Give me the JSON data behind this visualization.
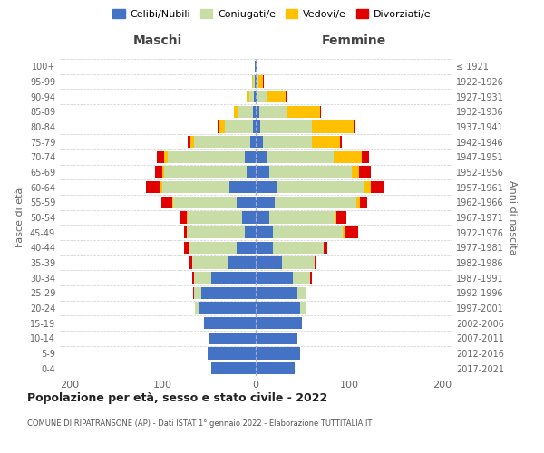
{
  "age_groups": [
    "0-4",
    "5-9",
    "10-14",
    "15-19",
    "20-24",
    "25-29",
    "30-34",
    "35-39",
    "40-44",
    "45-49",
    "50-54",
    "55-59",
    "60-64",
    "65-69",
    "70-74",
    "75-79",
    "80-84",
    "85-89",
    "90-94",
    "95-99",
    "100+"
  ],
  "birth_years": [
    "2017-2021",
    "2012-2016",
    "2007-2011",
    "2002-2006",
    "1997-2001",
    "1992-1996",
    "1987-1991",
    "1982-1986",
    "1977-1981",
    "1972-1976",
    "1967-1971",
    "1962-1966",
    "1957-1961",
    "1952-1956",
    "1947-1951",
    "1942-1946",
    "1937-1941",
    "1932-1936",
    "1927-1931",
    "1922-1926",
    "≤ 1921"
  ],
  "colors": {
    "celibi": "#4472c4",
    "coniugati": "#c8dca5",
    "vedovi": "#ffc000",
    "divorziati": "#e00000"
  },
  "maschi": {
    "celibi": [
      48,
      52,
      50,
      55,
      60,
      58,
      48,
      30,
      20,
      12,
      15,
      20,
      28,
      10,
      12,
      6,
      3,
      3,
      2,
      1,
      1
    ],
    "coniugati": [
      0,
      0,
      0,
      0,
      5,
      8,
      18,
      38,
      52,
      62,
      58,
      68,
      72,
      88,
      82,
      60,
      30,
      15,
      5,
      2,
      0
    ],
    "vedovi": [
      0,
      0,
      0,
      0,
      0,
      0,
      0,
      0,
      0,
      0,
      1,
      1,
      2,
      2,
      4,
      4,
      6,
      5,
      3,
      1,
      0
    ],
    "divorziati": [
      0,
      0,
      0,
      0,
      0,
      1,
      2,
      3,
      5,
      3,
      8,
      12,
      16,
      8,
      8,
      3,
      2,
      0,
      0,
      0,
      0
    ]
  },
  "femmine": {
    "celibi": [
      42,
      48,
      45,
      50,
      48,
      45,
      40,
      28,
      18,
      18,
      15,
      20,
      22,
      15,
      12,
      8,
      5,
      4,
      2,
      1,
      1
    ],
    "coniugati": [
      0,
      0,
      0,
      0,
      5,
      8,
      18,
      35,
      55,
      75,
      70,
      88,
      95,
      88,
      72,
      52,
      55,
      30,
      10,
      2,
      0
    ],
    "vedovi": [
      0,
      0,
      0,
      0,
      0,
      0,
      0,
      0,
      0,
      2,
      2,
      4,
      6,
      8,
      30,
      30,
      45,
      35,
      20,
      5,
      1
    ],
    "divorziati": [
      0,
      0,
      0,
      0,
      0,
      1,
      2,
      2,
      4,
      15,
      10,
      8,
      15,
      12,
      8,
      2,
      2,
      1,
      1,
      1,
      0
    ]
  },
  "title": "Popolazione per età, sesso e stato civile - 2022",
  "subtitle": "COMUNE DI RIPATRANSONE (AP) - Dati ISTAT 1° gennaio 2022 - Elaborazione TUTTITALIA.IT",
  "xlabel_left": "Maschi",
  "xlabel_right": "Femmine",
  "ylabel_left": "Fasce di età",
  "ylabel_right": "Anni di nascita",
  "xlim": 210,
  "legend_labels": [
    "Celibi/Nubili",
    "Coniugati/e",
    "Vedovi/e",
    "Divorziati/e"
  ],
  "bg_color": "#ffffff",
  "grid_color": "#cccccc"
}
